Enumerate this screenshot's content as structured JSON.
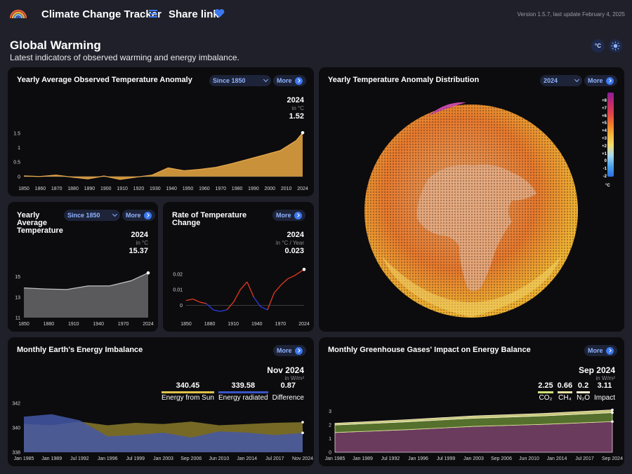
{
  "header": {
    "app_title": "Climate Change Tracker",
    "share_label": "Share link",
    "version": "Version 1.5.7, last update February 4, 2025"
  },
  "page": {
    "title": "Global Warming",
    "subtitle": "Latest indicators of observed warming and energy imbalance.",
    "unit_toggle": "°C"
  },
  "more_label": "More",
  "cards": {
    "anomaly": {
      "title": "Yearly Average Observed Temperature Anomaly",
      "select": "Since 1850",
      "year": "2024",
      "unit": "in °C",
      "value": "1.52"
    },
    "distribution": {
      "title": "Yearly Temperature Anomaly Distribution",
      "select": "2024"
    },
    "average": {
      "title": "Yearly Average Temperature",
      "select": "Since 1850",
      "year": "2024",
      "unit": "in °C",
      "value": "15.37"
    },
    "rate": {
      "title": "Rate of Temperature Change",
      "year": "2024",
      "unit": "in °C / Year",
      "value": "0.023"
    },
    "imbalance": {
      "title": "Monthly Earth's Energy Imbalance",
      "date": "Nov 2024",
      "unit": "in W/m²"
    },
    "ghg": {
      "title": "Monthly Greenhouse Gases' Impact on Energy Balance",
      "date": "Sep 2024",
      "unit": "in W/m²"
    }
  },
  "colorbar": {
    "ticks": [
      "+8",
      "+7",
      "+6",
      "+5",
      "+4",
      "+3",
      "+2",
      "+1",
      "0",
      "-1",
      "-2"
    ],
    "unit": "°C"
  },
  "imbalance_legend": [
    {
      "value": "340.45",
      "label": "Energy from Sun",
      "color": "#e0c24a"
    },
    {
      "value": "339.58",
      "label": "Energy radiated",
      "color": "#3855c8"
    },
    {
      "value": "0.87",
      "label": "Difference",
      "color": ""
    }
  ],
  "ghg_legend": [
    {
      "value": "2.25",
      "label": "CO₂",
      "color": "#cfe27a"
    },
    {
      "value": "0.66",
      "label": "CH₄",
      "color": "#e6e0a0"
    },
    {
      "value": "0.2",
      "label": "N₂O",
      "color": "#f3eecf"
    },
    {
      "value": "3.11",
      "label": "Impact",
      "color": ""
    }
  ],
  "chart_data": [
    {
      "type": "area",
      "title": "Yearly Average Observed Temperature Anomaly",
      "x_ticks": [
        "1850",
        "1860",
        "1870",
        "1880",
        "1890",
        "1900",
        "1910",
        "1920",
        "1930",
        "1940",
        "1950",
        "1960",
        "1970",
        "1980",
        "1990",
        "2000",
        "2010",
        "2024"
      ],
      "y_ticks": [
        "0",
        "0.5",
        "1",
        "1.5"
      ],
      "ylim": [
        -0.2,
        1.6
      ],
      "x": [
        1850,
        1860,
        1870,
        1880,
        1890,
        1900,
        1910,
        1920,
        1930,
        1940,
        1950,
        1960,
        1970,
        1980,
        1990,
        2000,
        2010,
        2020,
        2024
      ],
      "values": [
        0.02,
        0.0,
        0.05,
        -0.02,
        -0.08,
        0.02,
        -0.1,
        -0.02,
        0.05,
        0.3,
        0.2,
        0.25,
        0.32,
        0.45,
        0.6,
        0.75,
        0.9,
        1.25,
        1.52
      ]
    },
    {
      "type": "area",
      "title": "Yearly Average Temperature",
      "x_ticks": [
        "1850",
        "1880",
        "1910",
        "1940",
        "1970",
        "2024"
      ],
      "y_ticks": [
        "11",
        "13",
        "15"
      ],
      "ylim": [
        11,
        16
      ],
      "x": [
        1850,
        1880,
        1910,
        1940,
        1970,
        2000,
        2024
      ],
      "values": [
        13.9,
        13.8,
        13.75,
        14.1,
        14.1,
        14.6,
        15.37
      ]
    },
    {
      "type": "line",
      "title": "Rate of Temperature Change",
      "x_ticks": [
        "1850",
        "1880",
        "1910",
        "1940",
        "1970",
        "2024"
      ],
      "y_ticks": [
        "0",
        "0.01",
        "0.02"
      ],
      "ylim": [
        -0.008,
        0.024
      ],
      "x": [
        1850,
        1860,
        1870,
        1880,
        1890,
        1900,
        1910,
        1920,
        1930,
        1940,
        1950,
        1960,
        1970,
        1980,
        1990,
        2000,
        2010,
        2024
      ],
      "values": [
        0.003,
        0.004,
        0.002,
        0.001,
        -0.003,
        -0.004,
        -0.003,
        0.002,
        0.01,
        0.015,
        0.005,
        -0.001,
        -0.003,
        0.008,
        0.013,
        0.017,
        0.019,
        0.023
      ]
    },
    {
      "type": "area",
      "title": "Monthly Earth's Energy Imbalance",
      "x_ticks": [
        "Jan 1985",
        "Jan 1989",
        "Jul 1992",
        "Jan 1996",
        "Jul 1999",
        "Jan 2003",
        "Sep 2006",
        "Jun 2010",
        "Jan 2014",
        "Jul 2017",
        "Nov 2024"
      ],
      "y_ticks": [
        "338",
        "340",
        "342"
      ],
      "ylim": [
        338,
        342
      ],
      "series": [
        {
          "name": "Energy from Sun",
          "values": [
            340.3,
            340.2,
            340.5,
            340.2,
            340.4,
            340.3,
            340.5,
            340.2,
            340.3,
            340.4,
            340.45
          ]
        },
        {
          "name": "Energy radiated",
          "values": [
            340.9,
            341.1,
            340.6,
            339.3,
            339.4,
            339.6,
            339.2,
            339.7,
            339.6,
            339.4,
            339.58
          ]
        }
      ]
    },
    {
      "type": "area",
      "title": "Monthly Greenhouse Gases' Impact on Energy Balance",
      "x_ticks": [
        "Jan 1985",
        "Jan 1989",
        "Jul 1992",
        "Jan 1996",
        "Jul 1999",
        "Jan 2003",
        "Sep 2006",
        "Jun 2010",
        "Jan 2014",
        "Jul 2017",
        "Sep 2024"
      ],
      "y_ticks": [
        "0",
        "1",
        "2",
        "3"
      ],
      "ylim": [
        0,
        3.5
      ],
      "series": [
        {
          "name": "CO₂",
          "values": [
            1.45,
            1.65,
            1.9,
            2.05,
            2.25
          ]
        },
        {
          "name": "CH₄",
          "values": [
            0.55,
            0.58,
            0.6,
            0.62,
            0.66
          ]
        },
        {
          "name": "N₂O",
          "values": [
            0.13,
            0.15,
            0.17,
            0.18,
            0.2
          ]
        }
      ]
    }
  ]
}
